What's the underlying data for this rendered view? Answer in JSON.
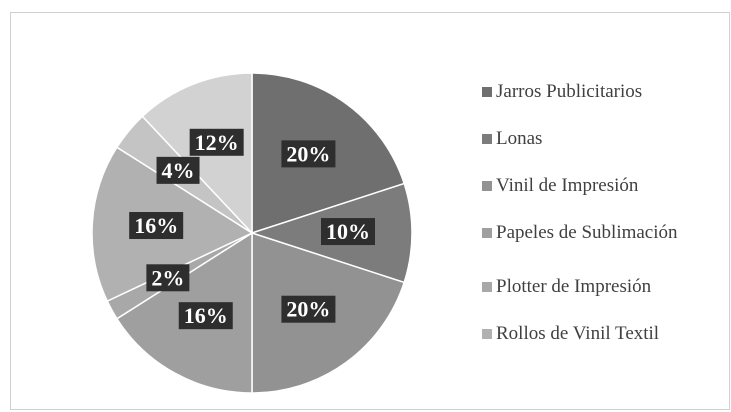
{
  "chart_data": {
    "type": "pie",
    "categories": [
      "Jarros Publicitarios",
      "Lonas",
      "Vinil de Impresión",
      "Papeles de Sublimación",
      "Plotter de Impresión",
      "Rollos de Vinil Textil",
      null,
      null
    ],
    "values": [
      20,
      10,
      20,
      16,
      2,
      16,
      4,
      12
    ],
    "value_labels": [
      "20%",
      "10%",
      "20%",
      "16%",
      "2%",
      "16%",
      "4%",
      "12%"
    ],
    "colors": [
      "#6f6f6f",
      "#7c7c7c",
      "#929292",
      "#9f9f9f",
      "#a8a8a8",
      "#b1b1b1",
      "#c4c4c4",
      "#d2d2d2"
    ],
    "legend": "right"
  }
}
